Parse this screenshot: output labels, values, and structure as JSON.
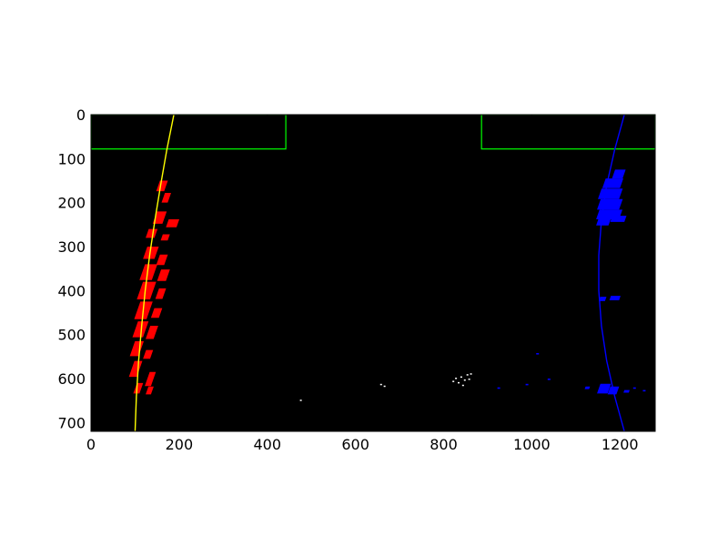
{
  "chart_data": {
    "type": "scatter",
    "title": "",
    "xlabel": "",
    "ylabel": "",
    "xlim": [
      0,
      1280
    ],
    "ylim": [
      720,
      0
    ],
    "y_inverted": true,
    "grid": false,
    "background": "#000000",
    "x_ticks": [
      0,
      200,
      400,
      600,
      800,
      1000,
      1200
    ],
    "x_tick_labels": [
      "0",
      "200",
      "400",
      "600",
      "800",
      "1000",
      "1200"
    ],
    "y_ticks": [
      0,
      100,
      200,
      300,
      400,
      500,
      600,
      700
    ],
    "y_tick_labels": [
      "0",
      "100",
      "200",
      "300",
      "400",
      "500",
      "600",
      "700"
    ],
    "search_windows": {
      "color": "#00ff00",
      "boxes": [
        {
          "x0": 0,
          "x1": 442,
          "y0": 0,
          "y1": 78
        },
        {
          "x0": 886,
          "x1": 1280,
          "y0": 0,
          "y1": 78
        }
      ]
    },
    "left_lane_pixels": {
      "color": "#ff0000",
      "blobs": [
        {
          "x": 148,
          "y": 150,
          "w": 18,
          "h": 24
        },
        {
          "x": 160,
          "y": 178,
          "w": 14,
          "h": 22
        },
        {
          "x": 140,
          "y": 220,
          "w": 22,
          "h": 28
        },
        {
          "x": 170,
          "y": 238,
          "w": 24,
          "h": 18
        },
        {
          "x": 124,
          "y": 260,
          "w": 20,
          "h": 20
        },
        {
          "x": 158,
          "y": 272,
          "w": 16,
          "h": 14
        },
        {
          "x": 118,
          "y": 300,
          "w": 26,
          "h": 28
        },
        {
          "x": 148,
          "y": 318,
          "w": 18,
          "h": 24
        },
        {
          "x": 110,
          "y": 340,
          "w": 28,
          "h": 36
        },
        {
          "x": 150,
          "y": 352,
          "w": 20,
          "h": 26
        },
        {
          "x": 104,
          "y": 380,
          "w": 30,
          "h": 40
        },
        {
          "x": 146,
          "y": 395,
          "w": 16,
          "h": 24
        },
        {
          "x": 98,
          "y": 425,
          "w": 28,
          "h": 40
        },
        {
          "x": 136,
          "y": 440,
          "w": 18,
          "h": 22
        },
        {
          "x": 94,
          "y": 470,
          "w": 24,
          "h": 36
        },
        {
          "x": 124,
          "y": 480,
          "w": 18,
          "h": 30
        },
        {
          "x": 88,
          "y": 515,
          "w": 20,
          "h": 34
        },
        {
          "x": 118,
          "y": 535,
          "w": 16,
          "h": 20
        },
        {
          "x": 86,
          "y": 560,
          "w": 18,
          "h": 36
        },
        {
          "x": 122,
          "y": 585,
          "w": 14,
          "h": 32
        },
        {
          "x": 96,
          "y": 610,
          "w": 14,
          "h": 24
        },
        {
          "x": 124,
          "y": 618,
          "w": 12,
          "h": 18
        }
      ]
    },
    "right_lane_pixels": {
      "color": "#0000ff",
      "blobs": [
        {
          "x": 1182,
          "y": 125,
          "w": 24,
          "h": 20
        },
        {
          "x": 1160,
          "y": 145,
          "w": 40,
          "h": 22
        },
        {
          "x": 1150,
          "y": 168,
          "w": 48,
          "h": 24
        },
        {
          "x": 1148,
          "y": 192,
          "w": 50,
          "h": 24
        },
        {
          "x": 1146,
          "y": 216,
          "w": 52,
          "h": 22
        },
        {
          "x": 1146,
          "y": 236,
          "w": 28,
          "h": 16
        },
        {
          "x": 1178,
          "y": 230,
          "w": 32,
          "h": 14
        },
        {
          "x": 1152,
          "y": 414,
          "w": 14,
          "h": 10
        },
        {
          "x": 1176,
          "y": 412,
          "w": 22,
          "h": 10
        },
        {
          "x": 1148,
          "y": 612,
          "w": 24,
          "h": 22
        },
        {
          "x": 1172,
          "y": 618,
          "w": 20,
          "h": 18
        },
        {
          "x": 1120,
          "y": 618,
          "w": 10,
          "h": 6
        },
        {
          "x": 1208,
          "y": 626,
          "w": 12,
          "h": 6
        }
      ],
      "specks": [
        {
          "x": 1010,
          "y": 542
        },
        {
          "x": 1036,
          "y": 600
        },
        {
          "x": 986,
          "y": 612
        },
        {
          "x": 922,
          "y": 620
        },
        {
          "x": 1230,
          "y": 620
        },
        {
          "x": 1252,
          "y": 626
        }
      ]
    },
    "noise_pixels": {
      "color": "#ffffff",
      "points": [
        {
          "x": 474,
          "y": 648
        },
        {
          "x": 656,
          "y": 612
        },
        {
          "x": 664,
          "y": 616
        },
        {
          "x": 820,
          "y": 605
        },
        {
          "x": 826,
          "y": 598
        },
        {
          "x": 832,
          "y": 608
        },
        {
          "x": 838,
          "y": 595
        },
        {
          "x": 846,
          "y": 602
        },
        {
          "x": 842,
          "y": 614
        },
        {
          "x": 852,
          "y": 590
        },
        {
          "x": 856,
          "y": 600
        },
        {
          "x": 860,
          "y": 588
        }
      ]
    },
    "series": [
      {
        "color": "#ffff00",
        "x": [
          188,
          172,
          158,
          145,
          133,
          123,
          115,
          108,
          103,
          100
        ],
        "y": [
          0,
          80,
          160,
          240,
          320,
          400,
          480,
          560,
          640,
          720
        ]
      },
      {
        "color": "#0000ff",
        "x": [
          1210,
          1188,
          1170,
          1158,
          1152,
          1152,
          1158,
          1170,
          1188,
          1210
        ],
        "y": [
          0,
          80,
          160,
          240,
          320,
          400,
          480,
          560,
          640,
          720
        ]
      }
    ]
  }
}
